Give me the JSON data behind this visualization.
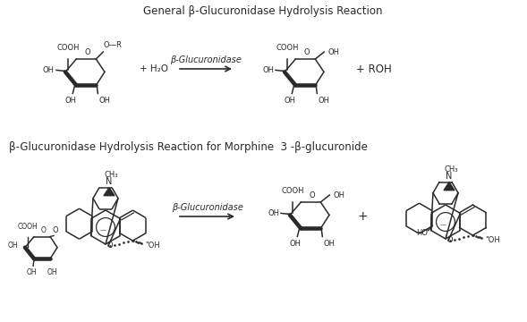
{
  "title1": "General β-Glucuronidase Hydrolysis Reaction",
  "title2": "β-Glucuronidase Hydrolysis Reaction for Morphine  3 -β-glucuronide",
  "enzyme_label": "β-Glucuronidase",
  "bg_color": "#ffffff",
  "line_color": "#2a2a2a",
  "text_color": "#2a2a2a",
  "title1_fontsize": 8.5,
  "title2_fontsize": 8.5,
  "label_fontsize": 7.0,
  "small_fontsize": 6.0
}
